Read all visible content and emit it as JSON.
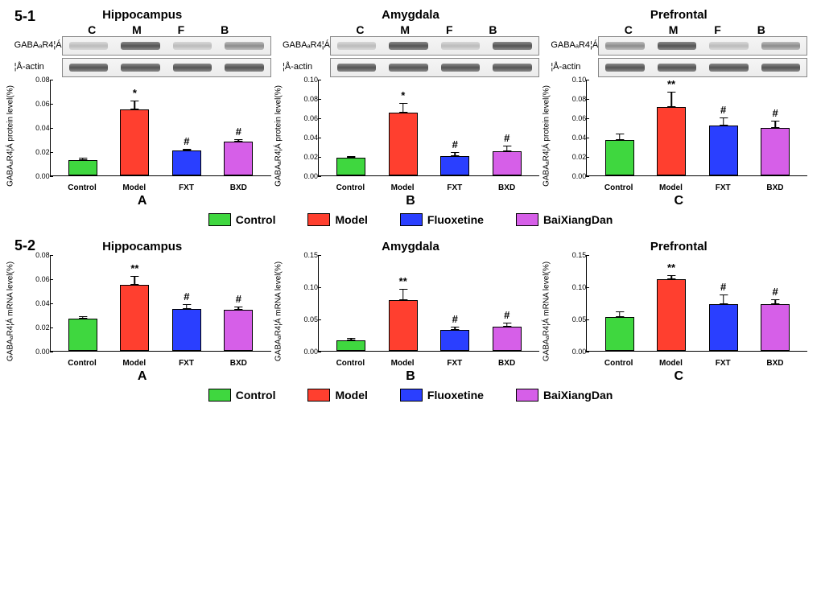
{
  "figure_labels": {
    "top": "5-1",
    "bottom": "5-2"
  },
  "lane_letters": [
    "C",
    "M",
    "F",
    "B"
  ],
  "blot_labels": {
    "target": "GABAₐR4¦Á",
    "loading": "¦Å-actin"
  },
  "legend": {
    "items": [
      {
        "label": "Control",
        "color": "#3fd73f"
      },
      {
        "label": "Model",
        "color": "#ff3f2f"
      },
      {
        "label": "Fluoxetine",
        "color": "#2a3fff"
      },
      {
        "label": "BaiXiangDan",
        "color": "#d65fe8"
      }
    ]
  },
  "categories": [
    "Control",
    "Model",
    "FXT",
    "BXD"
  ],
  "colors": {
    "Control": "#3fd73f",
    "Model": "#ff3f2f",
    "FXT": "#2a3fff",
    "BXD": "#d65fe8"
  },
  "panels_51": [
    {
      "title": "Hippocampus",
      "letter": "A",
      "ylabel": "GABAₐR4¦Á protein level(%)",
      "ymax": 0.08,
      "ytick": 0.02,
      "values": [
        0.013,
        0.055,
        0.021,
        0.028
      ],
      "errors": [
        0.002,
        0.007,
        0.001,
        0.002
      ],
      "sig": [
        "",
        "*",
        "#",
        "#"
      ],
      "band_intensity": [
        "faint",
        "dark",
        "faint",
        "normal"
      ]
    },
    {
      "title": "Amygdala",
      "letter": "B",
      "ylabel": "GABAₐR4¦Á protein level(%)",
      "ymax": 0.1,
      "ytick": 0.02,
      "values": [
        0.018,
        0.065,
        0.02,
        0.025
      ],
      "errors": [
        0.002,
        0.01,
        0.004,
        0.006
      ],
      "sig": [
        "",
        "*",
        "#",
        "#"
      ],
      "band_intensity": [
        "faint",
        "dark",
        "faint",
        "dark"
      ]
    },
    {
      "title": "Prefrontal",
      "letter": "C",
      "ylabel": "GABAₐR4¦Á protein level(%)",
      "ymax": 0.1,
      "ytick": 0.02,
      "values": [
        0.037,
        0.071,
        0.052,
        0.049
      ],
      "errors": [
        0.006,
        0.016,
        0.008,
        0.008
      ],
      "sig": [
        "",
        "**",
        "#",
        "#"
      ],
      "band_intensity": [
        "normal",
        "dark",
        "faint",
        "normal"
      ]
    }
  ],
  "panels_52": [
    {
      "title": "Hippocampus",
      "letter": "A",
      "ylabel": "GABAₐR4¦Á mRNA level(%)",
      "ymax": 0.08,
      "ytick": 0.02,
      "values": [
        0.027,
        0.055,
        0.035,
        0.034
      ],
      "errors": [
        0.002,
        0.007,
        0.004,
        0.003
      ],
      "sig": [
        "",
        "**",
        "#",
        "#"
      ]
    },
    {
      "title": "Amygdala",
      "letter": "B",
      "ylabel": "GABAₐR4¦Á mRNA level(%)",
      "ymax": 0.15,
      "ytick": 0.05,
      "values": [
        0.016,
        0.079,
        0.032,
        0.038
      ],
      "errors": [
        0.004,
        0.017,
        0.006,
        0.006
      ],
      "sig": [
        "",
        "**",
        "#",
        "#"
      ]
    },
    {
      "title": "Prefrontal",
      "letter": "C",
      "ylabel": "GABAₐR4¦Á mRNA level(%)",
      "ymax": 0.15,
      "ytick": 0.05,
      "values": [
        0.053,
        0.111,
        0.072,
        0.073
      ],
      "errors": [
        0.008,
        0.006,
        0.015,
        0.007
      ],
      "sig": [
        "",
        "**",
        "#",
        "#"
      ]
    }
  ]
}
